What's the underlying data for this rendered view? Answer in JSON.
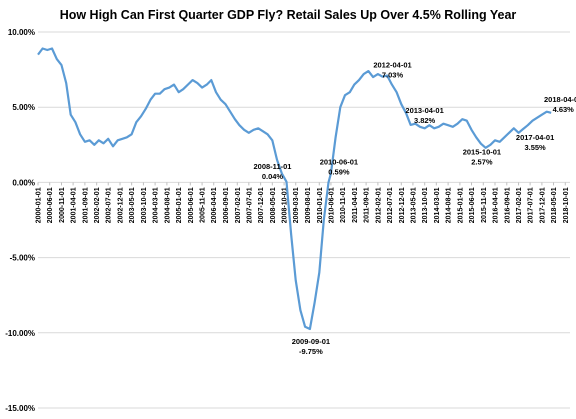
{
  "chart_data": {
    "type": "line",
    "title": "How High Can First Quarter GDP Fly? Retail Sales Up Over 4.5% Rolling Year",
    "xlabel": "",
    "ylabel": "",
    "ylim": [
      -15,
      10
    ],
    "yticks": [
      "10.00%",
      "5.00%",
      "0.00%",
      "-5.00%",
      "-10.00%",
      "-15.00%"
    ],
    "ytick_values": [
      10,
      5,
      0,
      -5,
      -10,
      -15
    ],
    "xtick_labels": [
      "2000-01-01",
      "2000-06-01",
      "2000-11-01",
      "2001-04-01",
      "2001-09-01",
      "2002-02-01",
      "2002-07-01",
      "2002-12-01",
      "2003-05-01",
      "2003-10-01",
      "2004-03-01",
      "2004-08-01",
      "2005-01-01",
      "2005-06-01",
      "2005-11-01",
      "2006-04-01",
      "2006-09-01",
      "2007-02-01",
      "2007-07-01",
      "2007-12-01",
      "2008-05-01",
      "2008-10-01",
      "2009-03-01",
      "2009-08-01",
      "2010-01-01",
      "2010-06-01",
      "2010-11-01",
      "2011-04-01",
      "2011-09-01",
      "2012-02-01",
      "2012-07-01",
      "2012-12-01",
      "2013-05-01",
      "2013-10-01",
      "2014-03-01",
      "2014-08-01",
      "2015-01-01",
      "2015-06-01",
      "2015-11-01",
      "2016-04-01",
      "2016-09-01",
      "2017-02-01",
      "2017-07-01",
      "2017-12-01",
      "2018-05-01",
      "2018-10-01"
    ],
    "grid": true,
    "line_color": "#5b9bd5",
    "series": [
      {
        "x": [
          "2000-01-01",
          "2000-03-01",
          "2000-05-01",
          "2000-07-01",
          "2000-09-01",
          "2000-11-01",
          "2001-01-01",
          "2001-03-01",
          "2001-05-01",
          "2001-07-01",
          "2001-09-01",
          "2001-11-01",
          "2002-01-01",
          "2002-03-01",
          "2002-05-01",
          "2002-07-01",
          "2002-09-01",
          "2002-11-01",
          "2003-01-01",
          "2003-03-01",
          "2003-05-01",
          "2003-07-01",
          "2003-09-01",
          "2003-11-01",
          "2004-01-01",
          "2004-03-01",
          "2004-05-01",
          "2004-07-01",
          "2004-09-01",
          "2004-11-01",
          "2005-01-01",
          "2005-03-01",
          "2005-05-01",
          "2005-07-01",
          "2005-09-01",
          "2005-11-01",
          "2006-01-01",
          "2006-03-01",
          "2006-05-01",
          "2006-07-01",
          "2006-09-01",
          "2006-11-01",
          "2007-01-01",
          "2007-03-01",
          "2007-05-01",
          "2007-07-01",
          "2007-09-01",
          "2007-11-01",
          "2008-01-01",
          "2008-03-01",
          "2008-05-01",
          "2008-07-01",
          "2008-09-01",
          "2008-11-01",
          "2009-01-01",
          "2009-03-01",
          "2009-05-01",
          "2009-07-01",
          "2009-09-01",
          "2009-11-01",
          "2010-01-01",
          "2010-03-01",
          "2010-05-01",
          "2010-06-01",
          "2010-08-01",
          "2010-10-01",
          "2010-12-01",
          "2011-02-01",
          "2011-04-01",
          "2011-06-01",
          "2011-08-01",
          "2011-10-01",
          "2011-12-01",
          "2012-02-01",
          "2012-04-01",
          "2012-06-01",
          "2012-08-01",
          "2012-10-01",
          "2012-12-01",
          "2013-02-01",
          "2013-04-01",
          "2013-06-01",
          "2013-08-01",
          "2013-10-01",
          "2013-12-01",
          "2014-02-01",
          "2014-04-01",
          "2014-06-01",
          "2014-08-01",
          "2014-10-01",
          "2014-12-01",
          "2015-02-01",
          "2015-04-01",
          "2015-06-01",
          "2015-08-01",
          "2015-10-01",
          "2015-12-01",
          "2016-02-01",
          "2016-04-01",
          "2016-06-01",
          "2016-08-01",
          "2016-10-01",
          "2016-12-01",
          "2017-02-01",
          "2017-04-01",
          "2017-06-01",
          "2017-08-01",
          "2017-10-01",
          "2017-12-01",
          "2018-02-01",
          "2018-04-01"
        ],
        "values": [
          8.5,
          8.9,
          8.8,
          8.9,
          8.2,
          7.8,
          6.6,
          4.5,
          4.0,
          3.2,
          2.7,
          2.8,
          2.5,
          2.8,
          2.6,
          2.9,
          2.4,
          2.8,
          2.9,
          3.0,
          3.2,
          4.0,
          4.4,
          4.9,
          5.5,
          5.9,
          5.9,
          6.2,
          6.3,
          6.5,
          6.0,
          6.2,
          6.5,
          6.8,
          6.6,
          6.3,
          6.5,
          6.8,
          6.0,
          5.5,
          5.2,
          4.7,
          4.2,
          3.8,
          3.5,
          3.3,
          3.5,
          3.6,
          3.4,
          3.2,
          2.8,
          1.5,
          0.6,
          0.04,
          -3.5,
          -6.5,
          -8.5,
          -9.6,
          -9.75,
          -8.0,
          -6.0,
          -2.5,
          0.0,
          0.59,
          3.0,
          5.0,
          5.8,
          6.0,
          6.5,
          6.8,
          7.2,
          7.4,
          7.0,
          7.2,
          7.03,
          7.1,
          6.5,
          6.0,
          5.2,
          4.6,
          3.82,
          3.9,
          3.7,
          3.6,
          3.8,
          3.6,
          3.7,
          3.9,
          3.8,
          3.7,
          3.9,
          4.2,
          4.1,
          3.5,
          3.0,
          2.57,
          2.3,
          2.5,
          2.8,
          2.7,
          3.0,
          3.3,
          3.6,
          3.3,
          3.55,
          3.8,
          4.1,
          4.3,
          4.5,
          4.7,
          4.63
        ]
      }
    ],
    "annotations": [
      {
        "date": "2008-11-01",
        "value": "0.04%"
      },
      {
        "date": "2009-09-01",
        "value": "-9.75%"
      },
      {
        "date": "2010-06-01",
        "value": "0.59%"
      },
      {
        "date": "2012-04-01",
        "value": "7.03%"
      },
      {
        "date": "2013-04-01",
        "value": "3.82%"
      },
      {
        "date": "2015-10-01",
        "value": "2.57%"
      },
      {
        "date": "2017-04-01",
        "value": "3.55%"
      },
      {
        "date": "2018-04-01",
        "value": "4.63%"
      }
    ]
  }
}
